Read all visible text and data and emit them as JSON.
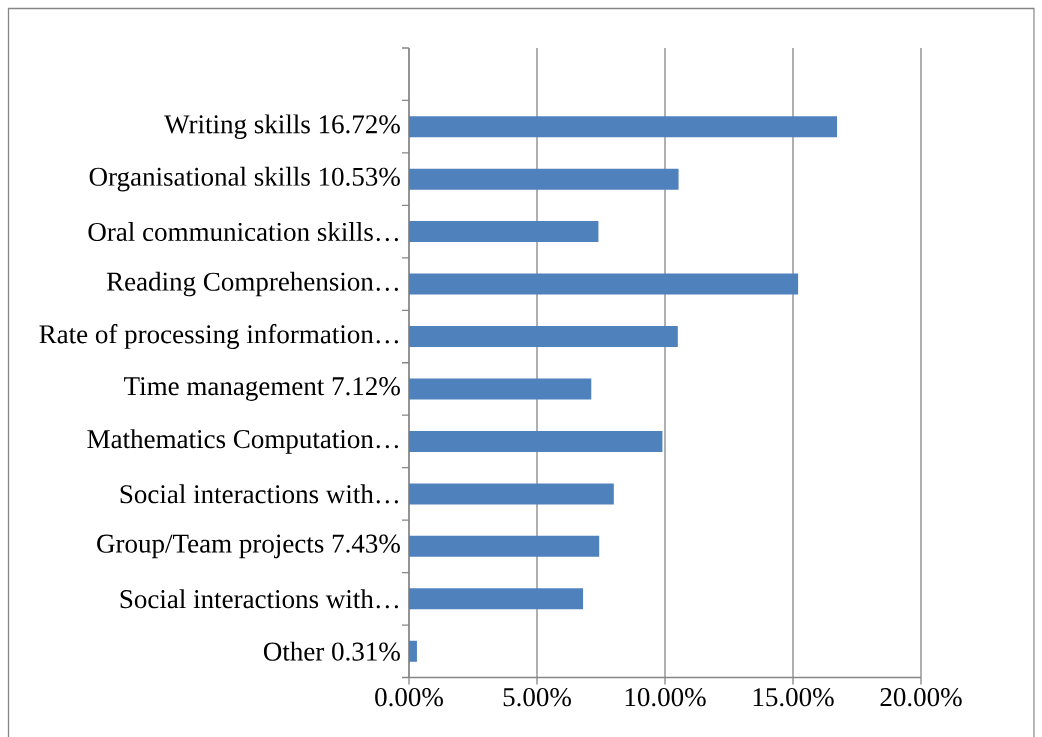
{
  "chart_data": {
    "type": "bar",
    "orientation": "horizontal",
    "categories": [
      null,
      "Writing skills 16.72%",
      "Organisational skills 10.53%",
      "Oral communication skills…",
      "Reading Comprehension…",
      "Rate of processing information…",
      "Time management 7.12%",
      "Mathematics Computation…",
      "Social interactions with…",
      "Group/Team projects 7.43%",
      "Social interactions with…",
      "Other 0.31%"
    ],
    "values": [
      null,
      16.72,
      10.53,
      7.4,
      15.2,
      10.5,
      7.12,
      9.9,
      8.0,
      7.43,
      6.8,
      0.31
    ],
    "color": "#4f81bd",
    "xlim": [
      0,
      20
    ],
    "xticks": [
      {
        "value": 0,
        "label": "0.00%"
      },
      {
        "value": 5,
        "label": "5.00%"
      },
      {
        "value": 10,
        "label": "10.00%"
      },
      {
        "value": 15,
        "label": "15.00%"
      },
      {
        "value": 20,
        "label": "20.00%"
      }
    ],
    "grid": "x"
  }
}
